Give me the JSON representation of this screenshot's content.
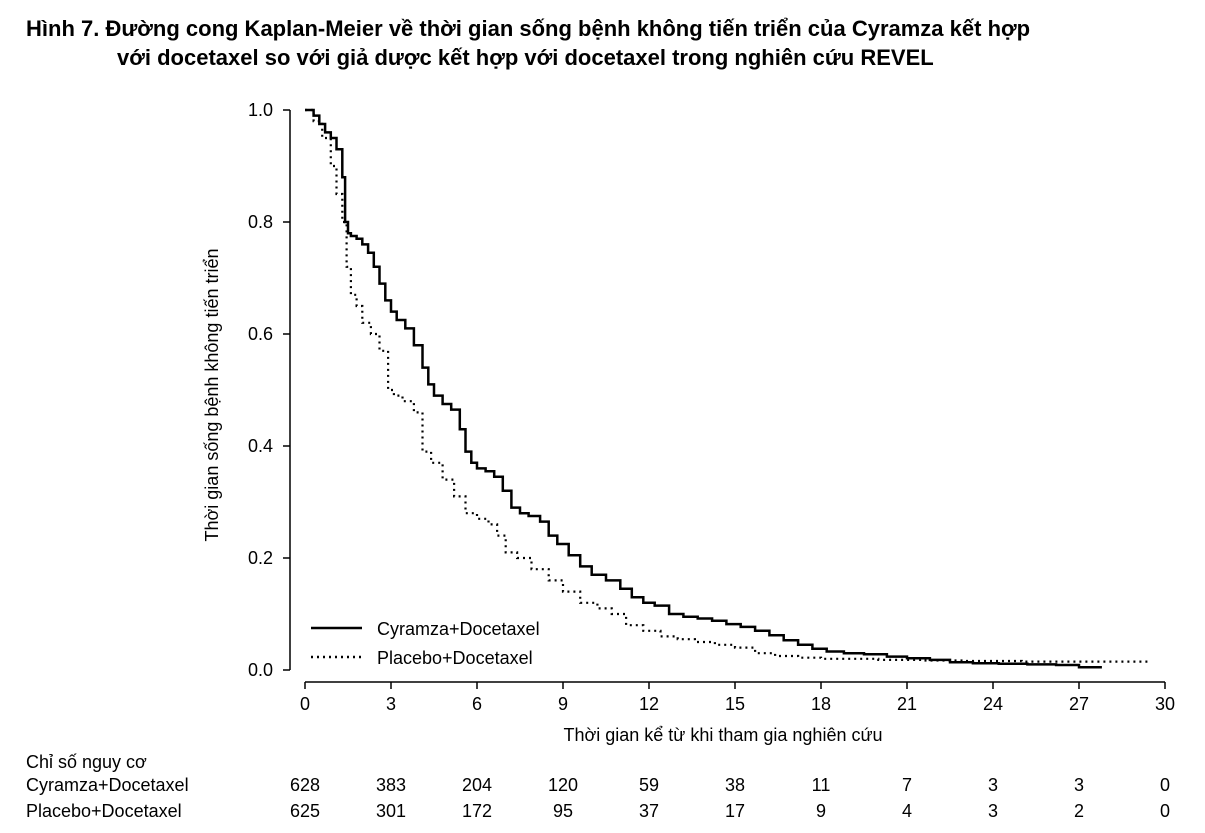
{
  "figure": {
    "title_line1": "Hình 7. Đường cong Kaplan-Meier về thời gian sống bệnh không tiến triển của Cyramza kết hợp",
    "title_line2": "với docetaxel so với giả dược kết hợp với docetaxel trong nghiên cứu REVEL"
  },
  "chart_data": {
    "type": "line",
    "step": true,
    "xlabel": "Thời gian kể từ khi tham gia nghiên cứu",
    "ylabel": "Thời gian sống bệnh không tiến triển",
    "xlim": [
      0,
      30
    ],
    "ylim": [
      0,
      1
    ],
    "x_ticks": [
      "0",
      "3",
      "6",
      "9",
      "12",
      "15",
      "18",
      "21",
      "24",
      "27",
      "30"
    ],
    "y_ticks": [
      "0.0",
      "0.2",
      "0.4",
      "0.6",
      "0.8",
      "1.0"
    ],
    "legend_position": "bottom-left",
    "series": [
      {
        "name": "Cyramza+Docetaxel",
        "line_style": "solid",
        "color": "#000000",
        "x": [
          0,
          0.3,
          0.5,
          0.7,
          0.9,
          1.1,
          1.3,
          1.4,
          1.5,
          1.6,
          1.8,
          2.0,
          2.2,
          2.4,
          2.6,
          2.8,
          3.0,
          3.2,
          3.5,
          3.8,
          4.1,
          4.3,
          4.5,
          4.8,
          5.1,
          5.4,
          5.6,
          5.8,
          6.0,
          6.3,
          6.6,
          6.9,
          7.2,
          7.5,
          7.8,
          8.2,
          8.5,
          8.8,
          9.2,
          9.6,
          10.0,
          10.5,
          11.0,
          11.4,
          11.8,
          12.2,
          12.7,
          13.2,
          13.7,
          14.2,
          14.7,
          15.2,
          15.7,
          16.2,
          16.7,
          17.2,
          17.7,
          18.2,
          18.8,
          19.5,
          20.3,
          21.0,
          21.8,
          22.5,
          23.3,
          24.2,
          25.2,
          26.2,
          27.0,
          27.8
        ],
        "y": [
          1.0,
          0.99,
          0.975,
          0.96,
          0.95,
          0.93,
          0.88,
          0.8,
          0.78,
          0.775,
          0.77,
          0.76,
          0.745,
          0.72,
          0.69,
          0.66,
          0.64,
          0.625,
          0.61,
          0.58,
          0.54,
          0.51,
          0.49,
          0.475,
          0.465,
          0.43,
          0.39,
          0.37,
          0.36,
          0.355,
          0.345,
          0.32,
          0.29,
          0.28,
          0.275,
          0.265,
          0.24,
          0.225,
          0.205,
          0.185,
          0.17,
          0.16,
          0.145,
          0.13,
          0.12,
          0.115,
          0.1,
          0.095,
          0.092,
          0.088,
          0.082,
          0.077,
          0.07,
          0.062,
          0.053,
          0.045,
          0.038,
          0.033,
          0.03,
          0.028,
          0.024,
          0.021,
          0.018,
          0.014,
          0.012,
          0.011,
          0.01,
          0.009,
          0.005,
          0.005
        ]
      },
      {
        "name": "Placebo+Docetaxel",
        "line_style": "dotted",
        "color": "#000000",
        "x": [
          0,
          0.3,
          0.6,
          0.9,
          1.1,
          1.3,
          1.45,
          1.6,
          1.8,
          2.0,
          2.3,
          2.6,
          2.9,
          3.1,
          3.4,
          3.8,
          4.1,
          4.4,
          4.8,
          5.2,
          5.6,
          6.0,
          6.4,
          6.7,
          7.0,
          7.4,
          7.9,
          8.5,
          9.0,
          9.6,
          10.2,
          10.7,
          11.2,
          11.8,
          12.4,
          13.0,
          13.6,
          14.3,
          15.0,
          15.7,
          16.4,
          17.2,
          18.0,
          19.0,
          20.0,
          21.5,
          23.0,
          25.0,
          27.0,
          29.5
        ],
        "y": [
          1.0,
          0.98,
          0.95,
          0.9,
          0.85,
          0.8,
          0.72,
          0.67,
          0.65,
          0.62,
          0.6,
          0.57,
          0.5,
          0.49,
          0.48,
          0.46,
          0.39,
          0.37,
          0.34,
          0.31,
          0.28,
          0.27,
          0.26,
          0.24,
          0.21,
          0.2,
          0.18,
          0.16,
          0.14,
          0.12,
          0.11,
          0.1,
          0.08,
          0.07,
          0.06,
          0.055,
          0.05,
          0.045,
          0.04,
          0.03,
          0.025,
          0.022,
          0.02,
          0.02,
          0.018,
          0.017,
          0.016,
          0.015,
          0.015,
          0.015
        ]
      }
    ]
  },
  "risk_table": {
    "header": "Chỉ số nguy cơ",
    "rows": [
      {
        "label": "Cyramza+Docetaxel",
        "values": [
          "628",
          "383",
          "204",
          "120",
          "59",
          "38",
          "11",
          "7",
          "3",
          "3",
          "0"
        ]
      },
      {
        "label": "Placebo+Docetaxel",
        "values": [
          "625",
          "301",
          "172",
          "95",
          "37",
          "17",
          "9",
          "4",
          "3",
          "2",
          "0"
        ]
      }
    ]
  }
}
